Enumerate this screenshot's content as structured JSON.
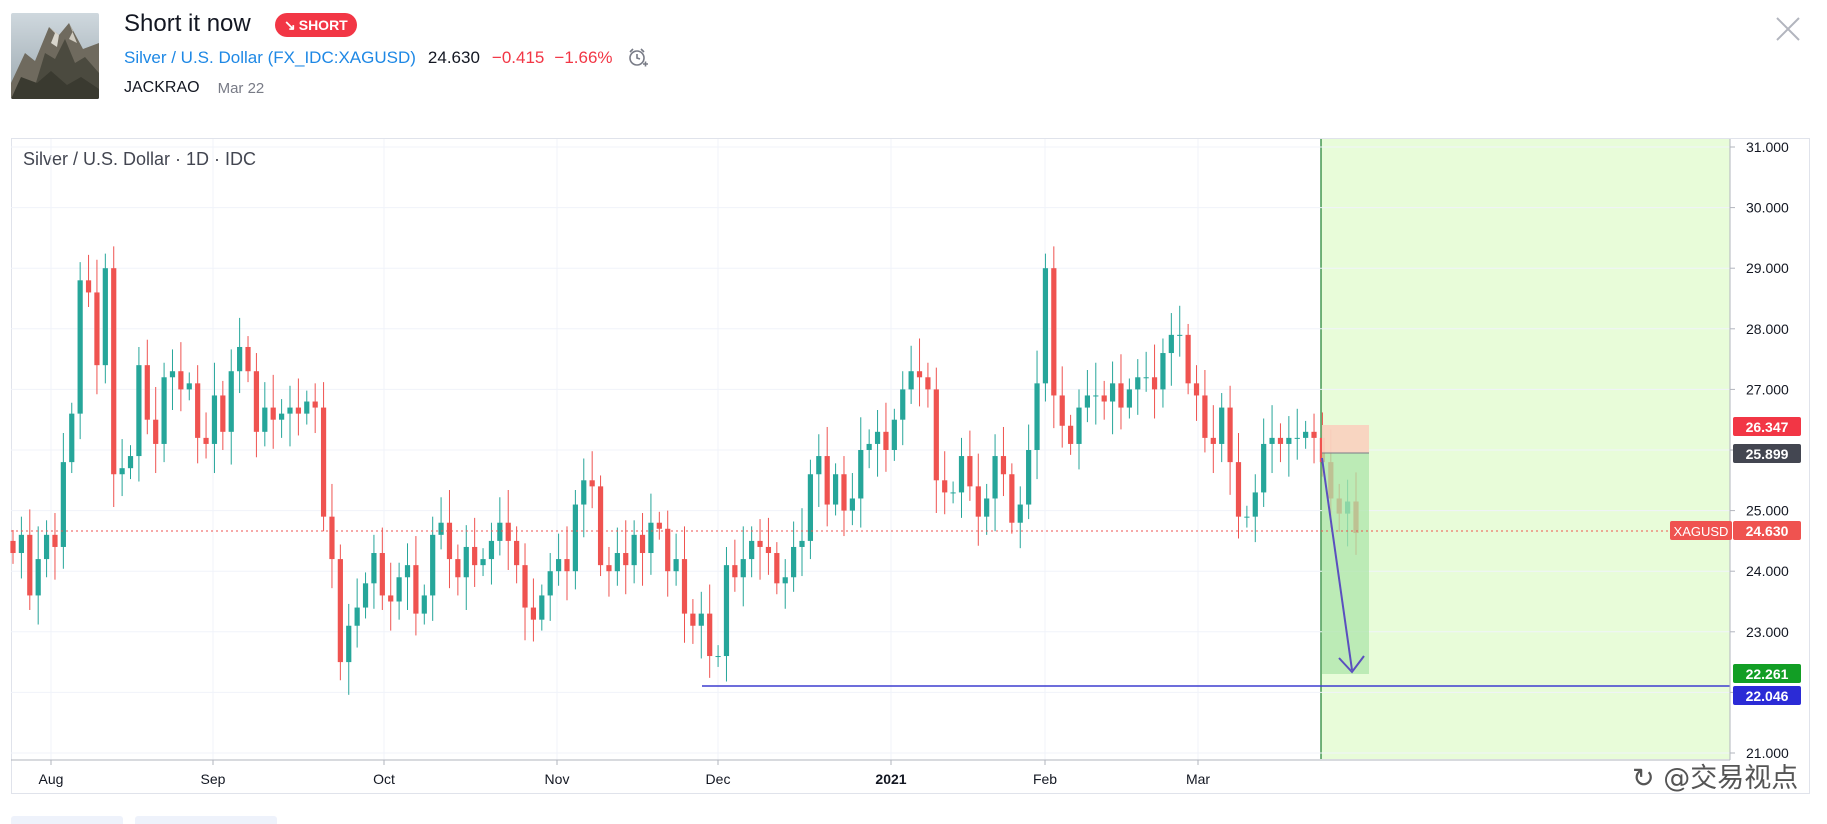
{
  "idea": {
    "title": "Short it now",
    "badge": "SHORT",
    "symbol_name": "Silver / U.S. Dollar",
    "symbol_code": "FX_IDC:XAGUSD",
    "price": "24.630",
    "change": "−0.415",
    "change_percent": "−1.66%",
    "author": "JACKRAO",
    "date": "Mar 22"
  },
  "chart": {
    "legend": "Silver / U.S. Dollar · 1D · IDC",
    "symbol_tag": "XAGUSD",
    "price_labels": {
      "stop": "26.347",
      "entry": "25.899",
      "last": "24.630",
      "target": "22.261",
      "line": "22.046"
    },
    "y_ticks": [
      "31.000",
      "30.000",
      "29.000",
      "28.000",
      "27.000",
      "26.000",
      "25.000",
      "24.000",
      "23.000",
      "22.000",
      "21.000"
    ],
    "x_ticks": [
      "Aug",
      "Sep",
      "Oct",
      "Nov",
      "Dec",
      "2021",
      "Feb",
      "Mar"
    ],
    "colors": {
      "up": "#26a69a",
      "down": "#ef5350",
      "profit_zone": "#e8fcd9",
      "short_stop": "#f9d3c0",
      "short_target": "#aee6a9",
      "hline": "#3d3dcf",
      "arrow": "#5a4fbf"
    }
  },
  "chart_data": {
    "type": "candlestick",
    "title": "Silver / U.S. Dollar · 1D · IDC",
    "ylim": [
      20.8,
      31.1
    ],
    "x_labels": [
      "Aug",
      "Sep",
      "Oct",
      "Nov",
      "Dec",
      "2021",
      "Feb",
      "Mar"
    ],
    "annotations": {
      "horizontal_line": 22.046,
      "short_entry": 25.899,
      "stop_loss": 26.347,
      "take_profit": 22.261,
      "last_price": 24.63
    },
    "closes": [
      24.3,
      24.6,
      23.6,
      24.2,
      24.6,
      24.4,
      25.8,
      26.6,
      28.8,
      28.6,
      27.4,
      29.0,
      25.6,
      25.7,
      25.9,
      27.4,
      26.5,
      26.1,
      27.2,
      27.3,
      27.0,
      27.1,
      26.2,
      26.1,
      26.9,
      26.3,
      27.3,
      27.7,
      27.3,
      26.3,
      26.7,
      26.5,
      26.6,
      26.7,
      26.6,
      26.8,
      26.7,
      24.9,
      24.2,
      22.5,
      23.1,
      23.4,
      23.8,
      24.3,
      23.6,
      23.5,
      23.9,
      24.1,
      23.3,
      23.6,
      24.6,
      24.8,
      24.2,
      23.9,
      24.4,
      24.1,
      24.2,
      24.5,
      24.8,
      24.5,
      24.1,
      23.4,
      23.2,
      23.6,
      24.0,
      24.2,
      24.0,
      25.1,
      25.5,
      25.4,
      24.1,
      24.0,
      24.3,
      24.1,
      24.6,
      24.3,
      24.8,
      24.7,
      24.0,
      24.2,
      23.3,
      23.1,
      23.3,
      22.6,
      22.6,
      24.1,
      23.9,
      24.2,
      24.5,
      24.4,
      24.3,
      23.8,
      23.9,
      24.4,
      24.5,
      25.6,
      25.9,
      25.1,
      25.6,
      25.0,
      25.2,
      26.0,
      26.1,
      26.3,
      26.0,
      26.5,
      27.0,
      27.3,
      27.2,
      27.0,
      25.5,
      25.3,
      25.3,
      25.9,
      25.4,
      24.9,
      25.2,
      25.9,
      25.6,
      24.8,
      25.1,
      26.0,
      27.1,
      29.0,
      26.9,
      26.4,
      26.1,
      26.7,
      26.9,
      26.9,
      26.8,
      27.1,
      26.7,
      27.0,
      27.2,
      27.2,
      27.0,
      27.6,
      27.9,
      27.9,
      27.1,
      26.9,
      26.2,
      26.1,
      26.7,
      25.8,
      24.9,
      24.9,
      25.3,
      26.1,
      26.2,
      26.1,
      26.2,
      26.2,
      26.3,
      26.2,
      25.8,
      25.2,
      24.95,
      25.15,
      24.63
    ]
  }
}
